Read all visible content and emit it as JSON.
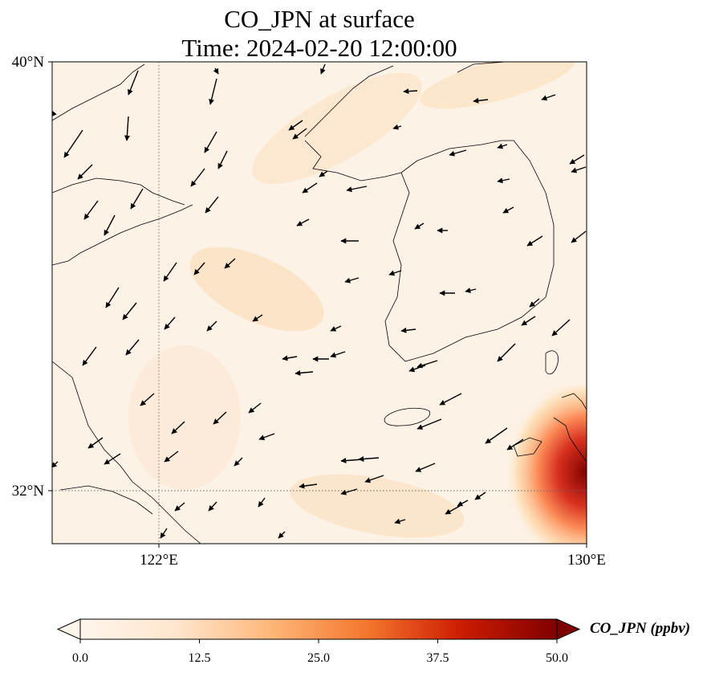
{
  "title": {
    "line1": "CO_JPN at surface",
    "line2": "Time: 2024-02-20 12:00:00"
  },
  "map": {
    "lat_range": [
      31,
      40
    ],
    "lon_range": [
      120,
      130
    ],
    "lat_labels": [
      "40°N",
      "32°N"
    ],
    "lon_labels": [
      "122°E",
      "130°E"
    ],
    "gridlines": {
      "lat": 32,
      "lon": 122,
      "style": "dotted"
    },
    "fill_palette": [
      "#fff5eb",
      "#fee6ce",
      "#fdd0a2",
      "#fdae6b",
      "#fd8d3c",
      "#f16913",
      "#d94801",
      "#a63603",
      "#7f2704"
    ],
    "concentration_hotspot": {
      "location": "southeast corner near Kyushu",
      "max_ppbv_approx": 50
    },
    "wind_vectors": "black arrows, predominantly from the northeast/north"
  },
  "colorbar": {
    "label": "CO_JPN (ppbv)",
    "tick_labels": [
      "0.0",
      "12.5",
      "25.0",
      "37.5",
      "50.0"
    ],
    "min": 0,
    "max": 50,
    "extend": "both",
    "colors": [
      "#fff5eb",
      "#fdd9b4",
      "#fda35c",
      "#e6550d",
      "#b30000",
      "#7f0000"
    ]
  }
}
